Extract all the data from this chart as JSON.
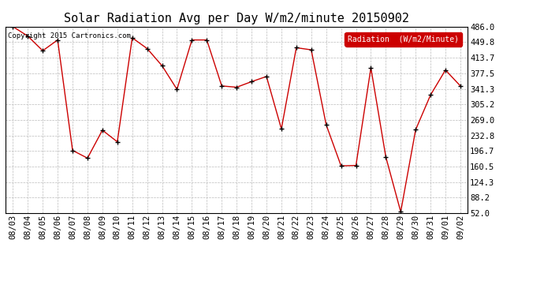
{
  "title": "Solar Radiation Avg per Day W/m2/minute 20150902",
  "copyright": "Copyright 2015 Cartronics.com",
  "legend_label": "Radiation  (W/m2/Minute)",
  "dates": [
    "08/03",
    "08/04",
    "08/05",
    "08/06",
    "08/07",
    "08/08",
    "08/09",
    "08/10",
    "08/11",
    "08/12",
    "08/13",
    "08/14",
    "08/15",
    "08/16",
    "08/17",
    "08/18",
    "08/19",
    "08/20",
    "08/21",
    "08/22",
    "08/23",
    "08/24",
    "08/25",
    "08/26",
    "08/27",
    "08/28",
    "08/29",
    "08/30",
    "08/31",
    "09/01",
    "09/02"
  ],
  "values": [
    486.0,
    464.0,
    430.0,
    455.0,
    198.0,
    180.0,
    245.0,
    218.0,
    460.0,
    435.0,
    395.0,
    340.0,
    455.0,
    455.0,
    348.0,
    345.0,
    358.0,
    370.0,
    248.0,
    437.0,
    432.0,
    258.0,
    162.0,
    163.0,
    390.0,
    183.0,
    55.0,
    246.0,
    327.0,
    385.0,
    348.0
  ],
  "ylim": [
    52.0,
    486.0
  ],
  "yticks": [
    52.0,
    88.2,
    124.3,
    160.5,
    196.7,
    232.8,
    269.0,
    305.2,
    341.3,
    377.5,
    413.7,
    449.8,
    486.0
  ],
  "line_color": "#cc0000",
  "marker_color": "#000000",
  "background_color": "#ffffff",
  "plot_bg_color": "#ffffff",
  "grid_color": "#bbbbbb",
  "legend_bg": "#cc0000",
  "legend_text_color": "#ffffff",
  "title_fontsize": 11,
  "tick_fontsize": 7.5,
  "copyright_fontsize": 6.5
}
